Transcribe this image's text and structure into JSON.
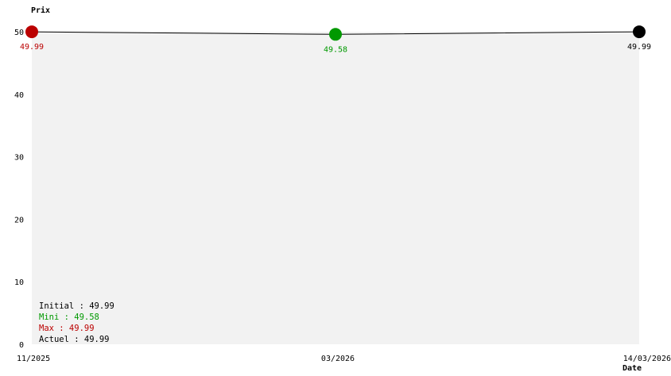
{
  "chart_data": {
    "type": "line",
    "ylabel": "Prix",
    "xlabel": "Date",
    "ylim": [
      0,
      50
    ],
    "yticks": [
      0,
      10,
      20,
      30,
      40,
      50
    ],
    "x_tick_labels": [
      "11/2025",
      "03/2026",
      "14/03/2026"
    ],
    "points": [
      {
        "x": "11/2025",
        "y": 49.99,
        "label": "49.99",
        "color": "#bb0000"
      },
      {
        "x": "03/2026",
        "y": 49.58,
        "label": "49.58",
        "color": "#009900"
      },
      {
        "x": "14/03/2026",
        "y": 49.99,
        "label": "49.99",
        "color": "#000000"
      }
    ],
    "legend": [
      {
        "text": "Initial : 49.99",
        "color": "#000000"
      },
      {
        "text": "Mini : 49.58",
        "color": "#009900"
      },
      {
        "text": "Max : 49.99",
        "color": "#bb0000"
      },
      {
        "text": "Actuel : 49.99",
        "color": "#000000"
      }
    ],
    "plot_background": "#f2f2f2",
    "grid": false
  }
}
